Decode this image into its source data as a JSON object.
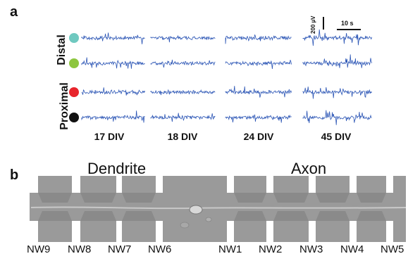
{
  "panel_a": {
    "label": "a",
    "group_labels": {
      "distal": "Distal",
      "proximal": "Proximal"
    },
    "electrodes": [
      {
        "color": "#6fc9c0"
      },
      {
        "color": "#8dc63f"
      },
      {
        "color": "#e8252c"
      },
      {
        "color": "#111111"
      }
    ],
    "columns": [
      "17 DIV",
      "18 DIV",
      "24 DIV",
      "45 DIV"
    ],
    "scale_bar": {
      "voltage": "200 µV",
      "time": "10 s"
    },
    "trace_color": "#2b55b5"
  },
  "panel_b": {
    "label": "b",
    "regions": {
      "dendrite": "Dendrite",
      "axon": "Axon"
    },
    "nanowire_labels": [
      "NW9",
      "NW8",
      "NW7",
      "NW6",
      "NW1",
      "NW2",
      "NW3",
      "NW4",
      "NW5"
    ]
  }
}
